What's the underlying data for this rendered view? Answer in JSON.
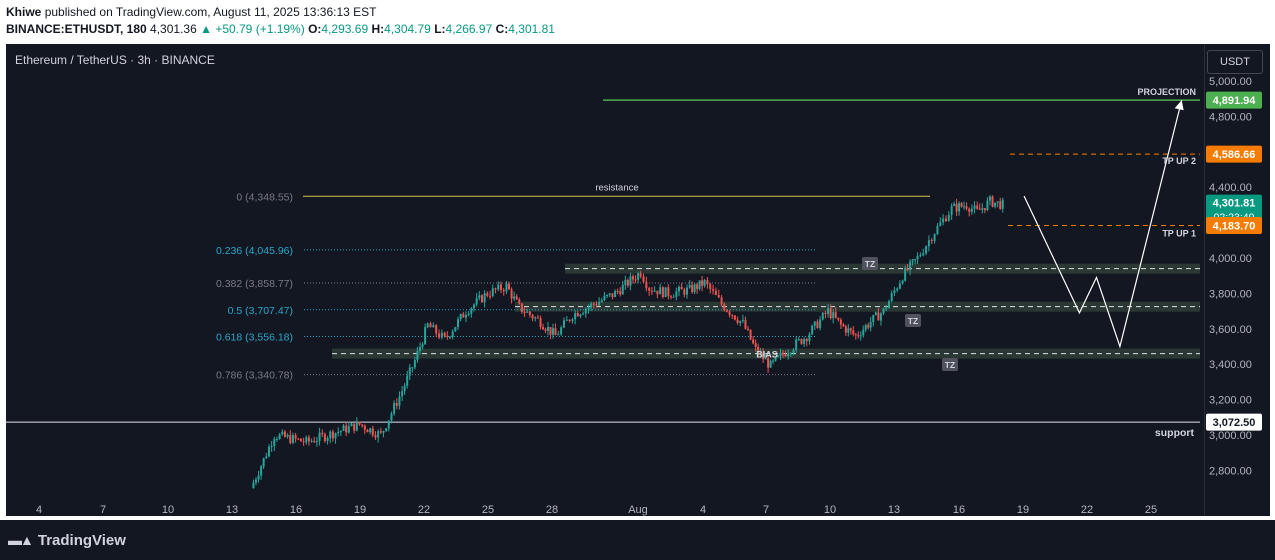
{
  "header": {
    "author": "Khiwe",
    "published_text": "published on TradingView.com, August 11, 2025 13:36:13 EST",
    "symbol": "BINANCE:ETHUSDT, 180",
    "last": "4,301.36",
    "change": "▲ +50.79 (+1.19%)",
    "open_label": "O:",
    "open": "4,293.69",
    "high_label": "H:",
    "high": "4,304.79",
    "low_label": "L:",
    "low": "4,266.97",
    "close_label": "C:",
    "close": "4,301.81"
  },
  "chart_title": "Ethereum / TetherUS · 3h · BINANCE",
  "currency_button": "USDT",
  "brand": "TradingView",
  "colors": {
    "up": "#26a69a",
    "down": "#ef5350",
    "fib_teal": "#2aa6c9",
    "fib_gray": "#787b86",
    "projection": "#4caf50",
    "tp": "#f57c00",
    "resistance": "#d6c34a",
    "zone": "#2f3d35"
  },
  "chart_data": {
    "type": "candlestick",
    "title": "Ethereum / TetherUS · 3h · BINANCE",
    "ylim": [
      2640,
      5150
    ],
    "y_ticks": [
      "5,000.00",
      "4,800.00",
      "4,400.00",
      "4,000.00",
      "3,800.00",
      "3,600.00",
      "3,400.00",
      "3,200.00",
      "3,000.00",
      "2,800.00"
    ],
    "y_tick_values": [
      5000,
      4800,
      4400,
      4000,
      3800,
      3600,
      3400,
      3200,
      3000,
      2800
    ],
    "x_ticks": [
      "4",
      "7",
      "10",
      "13",
      "16",
      "19",
      "22",
      "25",
      "28",
      "Aug",
      "4",
      "7",
      "10",
      "13",
      "16",
      "19",
      "22",
      "25"
    ],
    "price_path": [
      [
        9.9,
        2700
      ],
      [
        10.5,
        2860
      ],
      [
        11,
        3000
      ],
      [
        12.5,
        2960
      ],
      [
        14,
        3020
      ],
      [
        15,
        3060
      ],
      [
        16,
        3000
      ],
      [
        17,
        3250
      ],
      [
        17.6,
        3420
      ],
      [
        18.2,
        3620
      ],
      [
        19,
        3540
      ],
      [
        20,
        3700
      ],
      [
        21,
        3800
      ],
      [
        21.9,
        3840
      ],
      [
        22.5,
        3720
      ],
      [
        23.5,
        3640
      ],
      [
        24.2,
        3560
      ],
      [
        25,
        3680
      ],
      [
        26,
        3740
      ],
      [
        27,
        3800
      ],
      [
        28.2,
        3920
      ],
      [
        28.6,
        3830
      ],
      [
        29.5,
        3800
      ],
      [
        30.5,
        3820
      ],
      [
        31.2,
        3860
      ],
      [
        32,
        3740
      ],
      [
        33,
        3630
      ],
      [
        33.6,
        3480
      ],
      [
        34.3,
        3390
      ],
      [
        35,
        3470
      ],
      [
        36,
        3560
      ],
      [
        37,
        3700
      ],
      [
        37.6,
        3620
      ],
      [
        38.3,
        3560
      ],
      [
        39,
        3640
      ],
      [
        39.6,
        3700
      ],
      [
        40.5,
        3900
      ],
      [
        41.2,
        4000
      ],
      [
        42,
        4150
      ],
      [
        42.8,
        4280
      ],
      [
        43.5,
        4300
      ],
      [
        44,
        4260
      ],
      [
        44.6,
        4320
      ],
      [
        45.2,
        4301
      ]
    ],
    "fib_levels": [
      {
        "label": "0 (4,348.55)",
        "value": 4348.55
      },
      {
        "label": "0.236 (4,045.96)",
        "value": 4045.96
      },
      {
        "label": "0.382 (3,858.77)",
        "value": 3858.77
      },
      {
        "label": "0.5 (3,707.47)",
        "value": 3707.47
      },
      {
        "label": "0.618 (3,556.18)",
        "value": 3556.18
      },
      {
        "label": "0.786 (3,340.78)",
        "value": 3340.78
      }
    ],
    "annotations": {
      "resistance": "resistance",
      "projection": "PROJECTION",
      "tp_up_2": "TP UP 2",
      "tp_up_1": "TP UP 1",
      "bias": "BIAS",
      "support": "support",
      "tz": "TZ"
    },
    "price_labels": {
      "projection": "4,891.94",
      "tp_up_2": "4,586.66",
      "current": "4,301.81",
      "countdown": "02:23:49",
      "tp_up_1": "4,183.70",
      "support": "3,072.50"
    },
    "levels": {
      "projection": 4891.94,
      "tp_up_2": 4586.66,
      "tp_up_1": 4183.7,
      "support": 3072.5,
      "resistance": 4348.55,
      "zone_upper": 3940,
      "zone_mid": 3725,
      "zone_lower": 3460
    },
    "scenario_path": [
      [
        46.2,
        4350
      ],
      [
        48.8,
        3690
      ],
      [
        49.6,
        3890
      ],
      [
        50.7,
        3500
      ],
      [
        53.6,
        4891
      ]
    ]
  }
}
